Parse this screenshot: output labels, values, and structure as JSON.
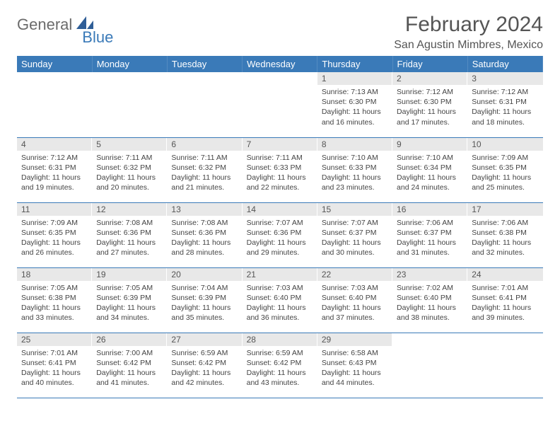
{
  "brand": {
    "part1": "General",
    "part2": "Blue"
  },
  "title": "February 2024",
  "location": "San Agustin Mimbres, Mexico",
  "colors": {
    "header_bg": "#3a7ab8",
    "header_text": "#ffffff",
    "daynum_bg": "#e8e8e8",
    "border": "#3a7ab8",
    "logo_gray": "#6b6b6b",
    "logo_blue": "#3a7ab8"
  },
  "dow": [
    "Sunday",
    "Monday",
    "Tuesday",
    "Wednesday",
    "Thursday",
    "Friday",
    "Saturday"
  ],
  "weeks": [
    [
      {
        "day": "",
        "sunrise": "",
        "sunset": "",
        "daylight": ""
      },
      {
        "day": "",
        "sunrise": "",
        "sunset": "",
        "daylight": ""
      },
      {
        "day": "",
        "sunrise": "",
        "sunset": "",
        "daylight": ""
      },
      {
        "day": "",
        "sunrise": "",
        "sunset": "",
        "daylight": ""
      },
      {
        "day": "1",
        "sunrise": "Sunrise: 7:13 AM",
        "sunset": "Sunset: 6:30 PM",
        "daylight": "Daylight: 11 hours and 16 minutes."
      },
      {
        "day": "2",
        "sunrise": "Sunrise: 7:12 AM",
        "sunset": "Sunset: 6:30 PM",
        "daylight": "Daylight: 11 hours and 17 minutes."
      },
      {
        "day": "3",
        "sunrise": "Sunrise: 7:12 AM",
        "sunset": "Sunset: 6:31 PM",
        "daylight": "Daylight: 11 hours and 18 minutes."
      }
    ],
    [
      {
        "day": "4",
        "sunrise": "Sunrise: 7:12 AM",
        "sunset": "Sunset: 6:31 PM",
        "daylight": "Daylight: 11 hours and 19 minutes."
      },
      {
        "day": "5",
        "sunrise": "Sunrise: 7:11 AM",
        "sunset": "Sunset: 6:32 PM",
        "daylight": "Daylight: 11 hours and 20 minutes."
      },
      {
        "day": "6",
        "sunrise": "Sunrise: 7:11 AM",
        "sunset": "Sunset: 6:32 PM",
        "daylight": "Daylight: 11 hours and 21 minutes."
      },
      {
        "day": "7",
        "sunrise": "Sunrise: 7:11 AM",
        "sunset": "Sunset: 6:33 PM",
        "daylight": "Daylight: 11 hours and 22 minutes."
      },
      {
        "day": "8",
        "sunrise": "Sunrise: 7:10 AM",
        "sunset": "Sunset: 6:33 PM",
        "daylight": "Daylight: 11 hours and 23 minutes."
      },
      {
        "day": "9",
        "sunrise": "Sunrise: 7:10 AM",
        "sunset": "Sunset: 6:34 PM",
        "daylight": "Daylight: 11 hours and 24 minutes."
      },
      {
        "day": "10",
        "sunrise": "Sunrise: 7:09 AM",
        "sunset": "Sunset: 6:35 PM",
        "daylight": "Daylight: 11 hours and 25 minutes."
      }
    ],
    [
      {
        "day": "11",
        "sunrise": "Sunrise: 7:09 AM",
        "sunset": "Sunset: 6:35 PM",
        "daylight": "Daylight: 11 hours and 26 minutes."
      },
      {
        "day": "12",
        "sunrise": "Sunrise: 7:08 AM",
        "sunset": "Sunset: 6:36 PM",
        "daylight": "Daylight: 11 hours and 27 minutes."
      },
      {
        "day": "13",
        "sunrise": "Sunrise: 7:08 AM",
        "sunset": "Sunset: 6:36 PM",
        "daylight": "Daylight: 11 hours and 28 minutes."
      },
      {
        "day": "14",
        "sunrise": "Sunrise: 7:07 AM",
        "sunset": "Sunset: 6:36 PM",
        "daylight": "Daylight: 11 hours and 29 minutes."
      },
      {
        "day": "15",
        "sunrise": "Sunrise: 7:07 AM",
        "sunset": "Sunset: 6:37 PM",
        "daylight": "Daylight: 11 hours and 30 minutes."
      },
      {
        "day": "16",
        "sunrise": "Sunrise: 7:06 AM",
        "sunset": "Sunset: 6:37 PM",
        "daylight": "Daylight: 11 hours and 31 minutes."
      },
      {
        "day": "17",
        "sunrise": "Sunrise: 7:06 AM",
        "sunset": "Sunset: 6:38 PM",
        "daylight": "Daylight: 11 hours and 32 minutes."
      }
    ],
    [
      {
        "day": "18",
        "sunrise": "Sunrise: 7:05 AM",
        "sunset": "Sunset: 6:38 PM",
        "daylight": "Daylight: 11 hours and 33 minutes."
      },
      {
        "day": "19",
        "sunrise": "Sunrise: 7:05 AM",
        "sunset": "Sunset: 6:39 PM",
        "daylight": "Daylight: 11 hours and 34 minutes."
      },
      {
        "day": "20",
        "sunrise": "Sunrise: 7:04 AM",
        "sunset": "Sunset: 6:39 PM",
        "daylight": "Daylight: 11 hours and 35 minutes."
      },
      {
        "day": "21",
        "sunrise": "Sunrise: 7:03 AM",
        "sunset": "Sunset: 6:40 PM",
        "daylight": "Daylight: 11 hours and 36 minutes."
      },
      {
        "day": "22",
        "sunrise": "Sunrise: 7:03 AM",
        "sunset": "Sunset: 6:40 PM",
        "daylight": "Daylight: 11 hours and 37 minutes."
      },
      {
        "day": "23",
        "sunrise": "Sunrise: 7:02 AM",
        "sunset": "Sunset: 6:40 PM",
        "daylight": "Daylight: 11 hours and 38 minutes."
      },
      {
        "day": "24",
        "sunrise": "Sunrise: 7:01 AM",
        "sunset": "Sunset: 6:41 PM",
        "daylight": "Daylight: 11 hours and 39 minutes."
      }
    ],
    [
      {
        "day": "25",
        "sunrise": "Sunrise: 7:01 AM",
        "sunset": "Sunset: 6:41 PM",
        "daylight": "Daylight: 11 hours and 40 minutes."
      },
      {
        "day": "26",
        "sunrise": "Sunrise: 7:00 AM",
        "sunset": "Sunset: 6:42 PM",
        "daylight": "Daylight: 11 hours and 41 minutes."
      },
      {
        "day": "27",
        "sunrise": "Sunrise: 6:59 AM",
        "sunset": "Sunset: 6:42 PM",
        "daylight": "Daylight: 11 hours and 42 minutes."
      },
      {
        "day": "28",
        "sunrise": "Sunrise: 6:59 AM",
        "sunset": "Sunset: 6:42 PM",
        "daylight": "Daylight: 11 hours and 43 minutes."
      },
      {
        "day": "29",
        "sunrise": "Sunrise: 6:58 AM",
        "sunset": "Sunset: 6:43 PM",
        "daylight": "Daylight: 11 hours and 44 minutes."
      },
      {
        "day": "",
        "sunrise": "",
        "sunset": "",
        "daylight": ""
      },
      {
        "day": "",
        "sunrise": "",
        "sunset": "",
        "daylight": ""
      }
    ]
  ]
}
